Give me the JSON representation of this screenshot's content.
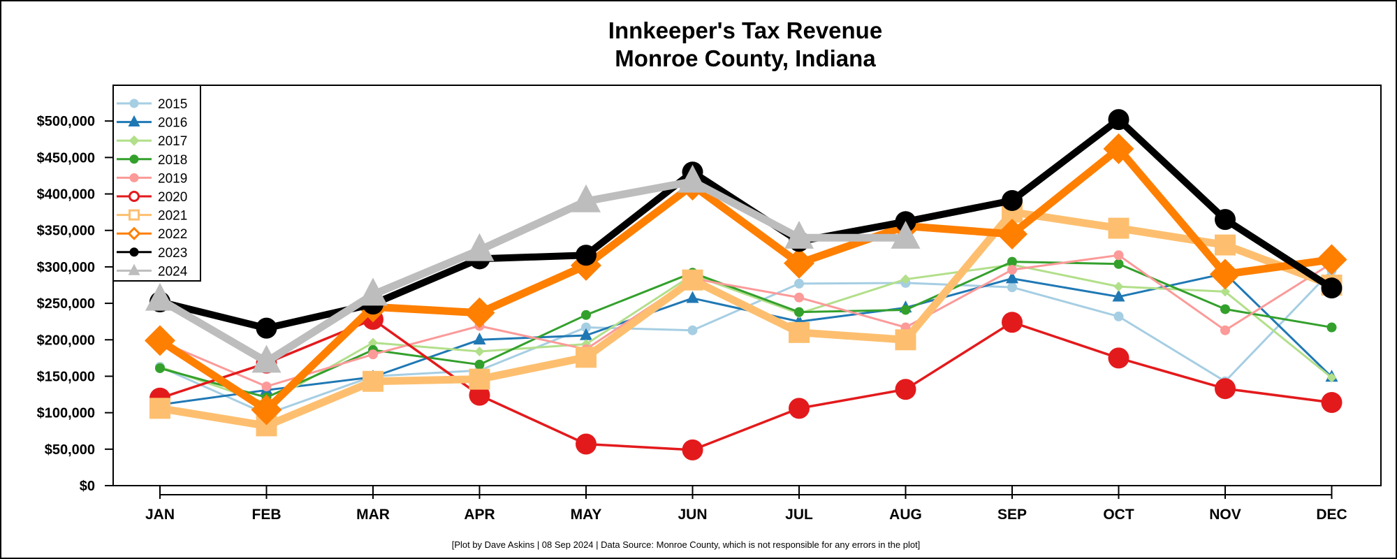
{
  "chart_data": {
    "type": "line",
    "title": "Innkeeper's Tax Revenue",
    "subtitle": "Monroe County, Indiana",
    "footer": "[Plot by Dave Askins | 08 Sep 2024 | Data Source: Monroe County, which is not responsible for any errors in the plot]",
    "xlabel": "",
    "ylabel": "",
    "categories": [
      "JAN",
      "FEB",
      "MAR",
      "APR",
      "MAY",
      "JUN",
      "JUL",
      "AUG",
      "SEP",
      "OCT",
      "NOV",
      "DEC"
    ],
    "ylim": [
      0,
      550000
    ],
    "yticks": [
      0,
      50000,
      100000,
      150000,
      200000,
      250000,
      300000,
      350000,
      400000,
      450000,
      500000
    ],
    "ytick_labels": [
      "$0",
      "$50,000",
      "$100,000",
      "$150,000",
      "$200,000",
      "$250,000",
      "$300,000",
      "$350,000",
      "$400,000",
      "$450,000",
      "$500,000"
    ],
    "legend_position": "top-left",
    "grid": false,
    "series": [
      {
        "name": "2015",
        "color": "#a6cee3",
        "marker": "circle",
        "values": [
          163000,
          98000,
          150000,
          158000,
          217000,
          213000,
          277000,
          278000,
          272000,
          232000,
          143000,
          295000
        ]
      },
      {
        "name": "2016",
        "color": "#1f78b4",
        "marker": "triangle",
        "values": [
          111000,
          131000,
          149000,
          200000,
          206000,
          257000,
          225000,
          244000,
          284000,
          259000,
          291000,
          149000
        ]
      },
      {
        "name": "2017",
        "color": "#b2df8a",
        "marker": "diamond",
        "values": [
          163000,
          113000,
          196000,
          184000,
          194000,
          289000,
          236000,
          283000,
          303000,
          273000,
          266000,
          148000
        ]
      },
      {
        "name": "2018",
        "color": "#33a02c",
        "marker": "circle",
        "values": [
          161000,
          121000,
          186000,
          166000,
          234000,
          292000,
          238000,
          241000,
          307000,
          304000,
          242000,
          217000
        ]
      },
      {
        "name": "2019",
        "color": "#fb9a99",
        "marker": "circle",
        "values": [
          198000,
          136000,
          180000,
          219000,
          187000,
          284000,
          258000,
          217000,
          296000,
          316000,
          213000,
          305000
        ]
      },
      {
        "name": "2020",
        "color": "#e31a1c",
        "marker": "circle-big",
        "values": [
          120000,
          168000,
          228000,
          124000,
          57000,
          49000,
          106000,
          132000,
          224000,
          175000,
          133000,
          114000
        ]
      },
      {
        "name": "2021",
        "color": "#fdbf6f",
        "marker": "square",
        "values": [
          106000,
          82000,
          143000,
          146000,
          176000,
          282000,
          210000,
          200000,
          375000,
          353000,
          330000,
          275000
        ]
      },
      {
        "name": "2022",
        "color": "#ff7f00",
        "marker": "diamond-big",
        "values": [
          199000,
          104000,
          245000,
          237000,
          302000,
          412000,
          305000,
          356000,
          345000,
          462000,
          290000,
          310000
        ]
      },
      {
        "name": "2023",
        "color": "#000000",
        "marker": "circle-big",
        "values": [
          252000,
          216000,
          249000,
          311000,
          316000,
          430000,
          335000,
          362000,
          391000,
          502000,
          365000,
          271000
        ]
      },
      {
        "name": "2024",
        "color": "#bdbdbd",
        "marker": "triangle-big",
        "values": [
          255000,
          170000,
          262000,
          323000,
          390000,
          417000,
          340000,
          340000,
          null,
          null,
          null,
          null
        ]
      }
    ]
  }
}
